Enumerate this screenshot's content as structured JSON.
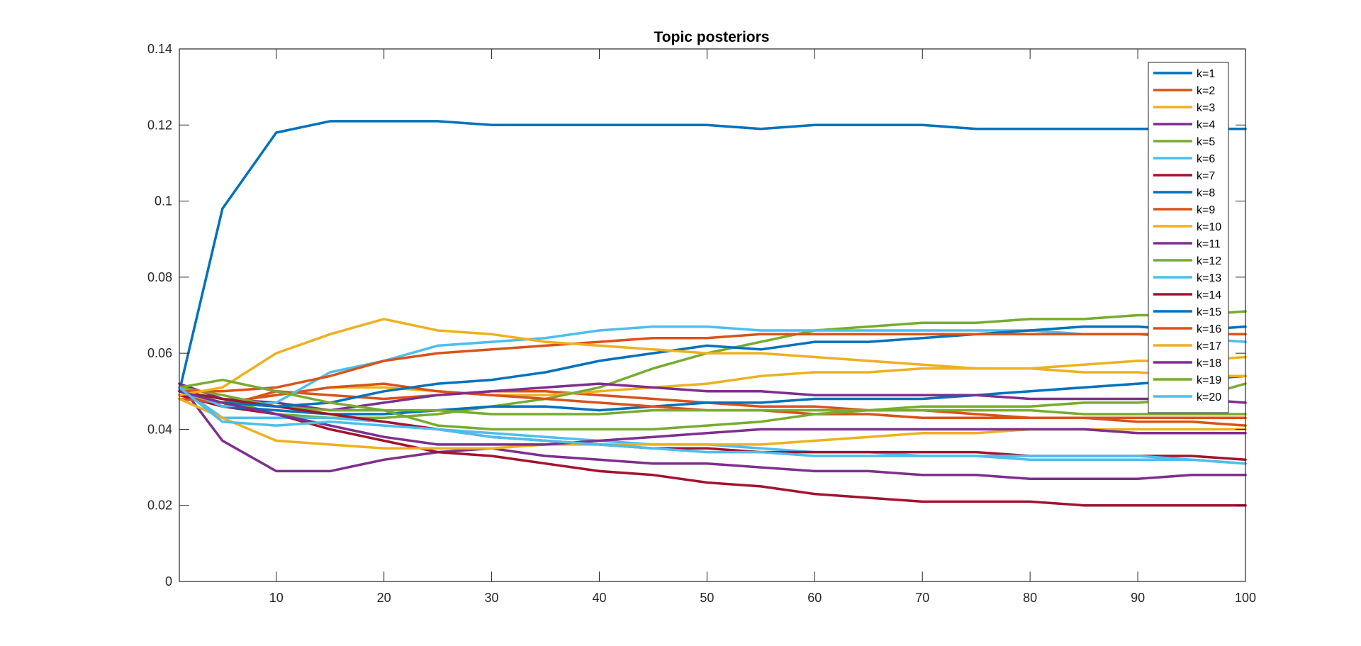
{
  "chart_data": {
    "type": "line",
    "title": "Topic posteriors",
    "xlabel": "",
    "ylabel": "",
    "xlim": [
      1,
      100
    ],
    "ylim": [
      0,
      0.14
    ],
    "x_ticks": [
      10,
      20,
      30,
      40,
      50,
      60,
      70,
      80,
      90,
      100
    ],
    "y_ticks": [
      0,
      0.02,
      0.04,
      0.06,
      0.08,
      0.1,
      0.12,
      0.14
    ],
    "x_tick_labels": [
      "10",
      "20",
      "30",
      "40",
      "50",
      "60",
      "70",
      "80",
      "90",
      "100"
    ],
    "y_tick_labels": [
      "0",
      "0.02",
      "0.04",
      "0.06",
      "0.08",
      "0.1",
      "0.12",
      "0.14"
    ],
    "grid": false,
    "legend_position": "top-right",
    "x": [
      1,
      5,
      10,
      15,
      20,
      25,
      30,
      35,
      40,
      45,
      50,
      55,
      60,
      65,
      70,
      75,
      80,
      85,
      90,
      95,
      100
    ],
    "series": [
      {
        "name": "k=1",
        "color": "#0072BD",
        "values": [
          0.05,
          0.098,
          0.118,
          0.121,
          0.121,
          0.121,
          0.12,
          0.12,
          0.12,
          0.12,
          0.12,
          0.119,
          0.12,
          0.12,
          0.12,
          0.119,
          0.119,
          0.119,
          0.119,
          0.119,
          0.119
        ]
      },
      {
        "name": "k=2",
        "color": "#D95319",
        "values": [
          0.049,
          0.046,
          0.05,
          0.049,
          0.048,
          0.049,
          0.05,
          0.05,
          0.049,
          0.048,
          0.047,
          0.046,
          0.046,
          0.045,
          0.045,
          0.044,
          0.043,
          0.043,
          0.042,
          0.042,
          0.041
        ]
      },
      {
        "name": "k=3",
        "color": "#EDB120",
        "values": [
          0.049,
          0.047,
          0.049,
          0.051,
          0.051,
          0.05,
          0.049,
          0.049,
          0.05,
          0.051,
          0.052,
          0.054,
          0.055,
          0.055,
          0.056,
          0.056,
          0.056,
          0.057,
          0.058,
          0.058,
          0.059
        ]
      },
      {
        "name": "k=4",
        "color": "#7E2F8E",
        "values": [
          0.052,
          0.037,
          0.029,
          0.029,
          0.032,
          0.034,
          0.035,
          0.033,
          0.032,
          0.031,
          0.031,
          0.03,
          0.029,
          0.029,
          0.028,
          0.028,
          0.027,
          0.027,
          0.027,
          0.028,
          0.028
        ]
      },
      {
        "name": "k=5",
        "color": "#77AC30",
        "values": [
          0.05,
          0.048,
          0.044,
          0.043,
          0.043,
          0.044,
          0.046,
          0.048,
          0.051,
          0.056,
          0.06,
          0.063,
          0.066,
          0.067,
          0.068,
          0.068,
          0.069,
          0.069,
          0.07,
          0.07,
          0.071
        ]
      },
      {
        "name": "k=6",
        "color": "#4DBEEE",
        "values": [
          0.051,
          0.043,
          0.043,
          0.043,
          0.042,
          0.04,
          0.039,
          0.038,
          0.037,
          0.036,
          0.036,
          0.035,
          0.034,
          0.034,
          0.033,
          0.033,
          0.032,
          0.032,
          0.032,
          0.032,
          0.031
        ]
      },
      {
        "name": "k=7",
        "color": "#A2142F",
        "values": [
          0.049,
          0.046,
          0.044,
          0.04,
          0.037,
          0.034,
          0.033,
          0.031,
          0.029,
          0.028,
          0.026,
          0.025,
          0.023,
          0.022,
          0.021,
          0.021,
          0.021,
          0.02,
          0.02,
          0.02,
          0.02
        ]
      },
      {
        "name": "k=8",
        "color": "#0072BD",
        "values": [
          0.051,
          0.046,
          0.045,
          0.044,
          0.044,
          0.045,
          0.046,
          0.046,
          0.045,
          0.046,
          0.047,
          0.047,
          0.048,
          0.048,
          0.048,
          0.049,
          0.05,
          0.051,
          0.052,
          0.053,
          0.054
        ]
      },
      {
        "name": "k=9",
        "color": "#D95319",
        "values": [
          0.048,
          0.047,
          0.049,
          0.051,
          0.052,
          0.05,
          0.049,
          0.048,
          0.047,
          0.046,
          0.045,
          0.045,
          0.044,
          0.044,
          0.043,
          0.043,
          0.043,
          0.043,
          0.043,
          0.043,
          0.043
        ]
      },
      {
        "name": "k=10",
        "color": "#EDB120",
        "values": [
          0.048,
          0.043,
          0.037,
          0.036,
          0.035,
          0.035,
          0.035,
          0.036,
          0.036,
          0.036,
          0.036,
          0.036,
          0.037,
          0.038,
          0.039,
          0.039,
          0.04,
          0.04,
          0.04,
          0.04,
          0.04
        ]
      },
      {
        "name": "k=11",
        "color": "#7E2F8E",
        "values": [
          0.052,
          0.048,
          0.047,
          0.045,
          0.047,
          0.049,
          0.05,
          0.051,
          0.052,
          0.051,
          0.05,
          0.05,
          0.049,
          0.049,
          0.049,
          0.049,
          0.048,
          0.048,
          0.048,
          0.048,
          0.047
        ]
      },
      {
        "name": "k=12",
        "color": "#77AC30",
        "values": [
          0.051,
          0.049,
          0.046,
          0.045,
          0.045,
          0.045,
          0.044,
          0.044,
          0.044,
          0.045,
          0.045,
          0.045,
          0.045,
          0.045,
          0.045,
          0.045,
          0.045,
          0.044,
          0.044,
          0.044,
          0.044
        ]
      },
      {
        "name": "k=13",
        "color": "#4DBEEE",
        "values": [
          0.051,
          0.046,
          0.047,
          0.055,
          0.058,
          0.062,
          0.063,
          0.064,
          0.066,
          0.067,
          0.067,
          0.066,
          0.066,
          0.066,
          0.066,
          0.066,
          0.066,
          0.065,
          0.065,
          0.064,
          0.063
        ]
      },
      {
        "name": "k=14",
        "color": "#A2142F",
        "values": [
          0.05,
          0.048,
          0.046,
          0.044,
          0.042,
          0.04,
          0.038,
          0.037,
          0.036,
          0.035,
          0.035,
          0.034,
          0.034,
          0.034,
          0.034,
          0.034,
          0.033,
          0.033,
          0.033,
          0.033,
          0.032
        ]
      },
      {
        "name": "k=15",
        "color": "#0072BD",
        "values": [
          0.05,
          0.047,
          0.046,
          0.047,
          0.05,
          0.052,
          0.053,
          0.055,
          0.058,
          0.06,
          0.062,
          0.061,
          0.063,
          0.063,
          0.064,
          0.065,
          0.066,
          0.067,
          0.067,
          0.066,
          0.067
        ]
      },
      {
        "name": "k=16",
        "color": "#D95319",
        "values": [
          0.05,
          0.05,
          0.051,
          0.054,
          0.058,
          0.06,
          0.061,
          0.062,
          0.063,
          0.064,
          0.064,
          0.065,
          0.065,
          0.065,
          0.065,
          0.065,
          0.065,
          0.065,
          0.065,
          0.065,
          0.065
        ]
      },
      {
        "name": "k=17",
        "color": "#EDB120",
        "values": [
          0.049,
          0.051,
          0.06,
          0.065,
          0.069,
          0.066,
          0.065,
          0.063,
          0.062,
          0.061,
          0.06,
          0.06,
          0.059,
          0.058,
          0.057,
          0.056,
          0.056,
          0.055,
          0.055,
          0.054,
          0.054
        ]
      },
      {
        "name": "k=18",
        "color": "#7E2F8E",
        "values": [
          0.05,
          0.047,
          0.044,
          0.041,
          0.038,
          0.036,
          0.036,
          0.036,
          0.037,
          0.038,
          0.039,
          0.04,
          0.04,
          0.04,
          0.04,
          0.04,
          0.04,
          0.04,
          0.039,
          0.039,
          0.039
        ]
      },
      {
        "name": "k=19",
        "color": "#77AC30",
        "values": [
          0.051,
          0.053,
          0.05,
          0.047,
          0.045,
          0.041,
          0.04,
          0.04,
          0.04,
          0.04,
          0.041,
          0.042,
          0.044,
          0.045,
          0.046,
          0.046,
          0.046,
          0.047,
          0.047,
          0.048,
          0.052
        ]
      },
      {
        "name": "k=20",
        "color": "#4DBEEE",
        "values": [
          0.051,
          0.042,
          0.041,
          0.042,
          0.041,
          0.04,
          0.038,
          0.037,
          0.036,
          0.035,
          0.034,
          0.034,
          0.033,
          0.033,
          0.033,
          0.033,
          0.033,
          0.033,
          0.033,
          0.032,
          0.031
        ]
      }
    ]
  }
}
